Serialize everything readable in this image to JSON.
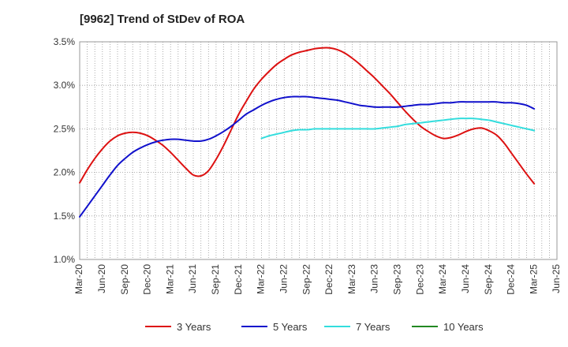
{
  "chart_data": {
    "type": "line",
    "title": "[9962]  Trend of StDev of ROA",
    "xlabel": "",
    "ylabel": "",
    "x_categories": [
      "Mar-20",
      "Jun-20",
      "Sep-20",
      "Dec-20",
      "Mar-21",
      "Jun-21",
      "Sep-21",
      "Dec-21",
      "Mar-22",
      "Jun-22",
      "Sep-22",
      "Dec-22",
      "Mar-23",
      "Jun-23",
      "Sep-23",
      "Dec-23",
      "Mar-24",
      "Jun-24",
      "Sep-24",
      "Dec-24",
      "Mar-25",
      "Jun-25"
    ],
    "y_ticks": [
      "1.0%",
      "1.5%",
      "2.0%",
      "2.5%",
      "3.0%",
      "3.5%"
    ],
    "ylim": [
      1.0,
      3.5
    ],
    "y_unit": "%",
    "grid": true,
    "legend_position": "bottom",
    "series": [
      {
        "name": "3 Years",
        "color": "#dd1111",
        "x": [
          "Mar-20",
          "Apr-20",
          "May-20",
          "Jun-20",
          "Jul-20",
          "Aug-20",
          "Sep-20",
          "Oct-20",
          "Nov-20",
          "Dec-20",
          "Jan-21",
          "Feb-21",
          "Mar-21",
          "Apr-21",
          "May-21",
          "Jun-21",
          "Jul-21",
          "Aug-21",
          "Sep-21",
          "Oct-21",
          "Nov-21",
          "Dec-21",
          "Jan-22",
          "Feb-22",
          "Mar-22",
          "Apr-22",
          "May-22",
          "Jun-22",
          "Jul-22",
          "Aug-22",
          "Sep-22",
          "Oct-22",
          "Nov-22",
          "Dec-22",
          "Jan-23",
          "Feb-23",
          "Mar-23",
          "Apr-23",
          "May-23",
          "Jun-23",
          "Jul-23",
          "Aug-23",
          "Sep-23",
          "Oct-23",
          "Nov-23",
          "Dec-23",
          "Jan-24",
          "Feb-24",
          "Mar-24",
          "Apr-24",
          "May-24",
          "Jun-24",
          "Jul-24",
          "Aug-24",
          "Sep-24",
          "Oct-24",
          "Nov-24",
          "Dec-24",
          "Jan-25",
          "Feb-25",
          "Mar-25"
        ],
        "values": [
          1.88,
          2.03,
          2.16,
          2.27,
          2.36,
          2.42,
          2.45,
          2.46,
          2.45,
          2.42,
          2.37,
          2.31,
          2.23,
          2.14,
          2.05,
          1.97,
          1.96,
          2.02,
          2.15,
          2.31,
          2.49,
          2.67,
          2.82,
          2.96,
          3.07,
          3.16,
          3.24,
          3.3,
          3.35,
          3.38,
          3.4,
          3.42,
          3.43,
          3.43,
          3.41,
          3.37,
          3.31,
          3.24,
          3.16,
          3.08,
          2.99,
          2.9,
          2.8,
          2.7,
          2.61,
          2.53,
          2.47,
          2.42,
          2.39,
          2.4,
          2.43,
          2.47,
          2.5,
          2.51,
          2.48,
          2.43,
          2.34,
          2.22,
          2.1,
          1.98,
          1.87
        ]
      },
      {
        "name": "5 Years",
        "color": "#1111cc",
        "x": [
          "Mar-20",
          "Apr-20",
          "May-20",
          "Jun-20",
          "Jul-20",
          "Aug-20",
          "Sep-20",
          "Oct-20",
          "Nov-20",
          "Dec-20",
          "Jan-21",
          "Feb-21",
          "Mar-21",
          "Apr-21",
          "May-21",
          "Jun-21",
          "Jul-21",
          "Aug-21",
          "Sep-21",
          "Oct-21",
          "Nov-21",
          "Dec-21",
          "Jan-22",
          "Feb-22",
          "Mar-22",
          "Apr-22",
          "May-22",
          "Jun-22",
          "Jul-22",
          "Aug-22",
          "Sep-22",
          "Oct-22",
          "Nov-22",
          "Dec-22",
          "Jan-23",
          "Feb-23",
          "Mar-23",
          "Apr-23",
          "May-23",
          "Jun-23",
          "Jul-23",
          "Aug-23",
          "Sep-23",
          "Oct-23",
          "Nov-23",
          "Dec-23",
          "Jan-24",
          "Feb-24",
          "Mar-24",
          "Apr-24",
          "May-24",
          "Jun-24",
          "Jul-24",
          "Aug-24",
          "Sep-24",
          "Oct-24",
          "Nov-24",
          "Dec-24",
          "Jan-25",
          "Feb-25",
          "Mar-25"
        ],
        "values": [
          1.49,
          1.61,
          1.73,
          1.85,
          1.97,
          2.08,
          2.16,
          2.23,
          2.28,
          2.32,
          2.35,
          2.37,
          2.38,
          2.38,
          2.37,
          2.36,
          2.36,
          2.38,
          2.42,
          2.47,
          2.53,
          2.6,
          2.67,
          2.72,
          2.77,
          2.81,
          2.84,
          2.86,
          2.87,
          2.87,
          2.87,
          2.86,
          2.85,
          2.84,
          2.83,
          2.81,
          2.79,
          2.77,
          2.76,
          2.75,
          2.75,
          2.75,
          2.75,
          2.76,
          2.77,
          2.78,
          2.78,
          2.79,
          2.8,
          2.8,
          2.81,
          2.81,
          2.81,
          2.81,
          2.81,
          2.81,
          2.8,
          2.8,
          2.79,
          2.77,
          2.73
        ]
      },
      {
        "name": "7 Years",
        "color": "#33dddd",
        "x": [
          "Mar-22",
          "Apr-22",
          "May-22",
          "Jun-22",
          "Jul-22",
          "Aug-22",
          "Sep-22",
          "Oct-22",
          "Nov-22",
          "Dec-22",
          "Jan-23",
          "Feb-23",
          "Mar-23",
          "Apr-23",
          "May-23",
          "Jun-23",
          "Jul-23",
          "Aug-23",
          "Sep-23",
          "Oct-23",
          "Nov-23",
          "Dec-23",
          "Jan-24",
          "Feb-24",
          "Mar-24",
          "Apr-24",
          "May-24",
          "Jun-24",
          "Jul-24",
          "Aug-24",
          "Sep-24",
          "Oct-24",
          "Nov-24",
          "Dec-24",
          "Jan-25",
          "Feb-25",
          "Mar-25"
        ],
        "values": [
          2.39,
          2.42,
          2.44,
          2.46,
          2.48,
          2.49,
          2.49,
          2.5,
          2.5,
          2.5,
          2.5,
          2.5,
          2.5,
          2.5,
          2.5,
          2.5,
          2.51,
          2.52,
          2.53,
          2.55,
          2.56,
          2.57,
          2.58,
          2.59,
          2.6,
          2.61,
          2.62,
          2.62,
          2.62,
          2.61,
          2.6,
          2.58,
          2.56,
          2.54,
          2.52,
          2.5,
          2.48
        ]
      },
      {
        "name": "10 Years",
        "color": "#228822",
        "x": [],
        "values": []
      }
    ]
  }
}
